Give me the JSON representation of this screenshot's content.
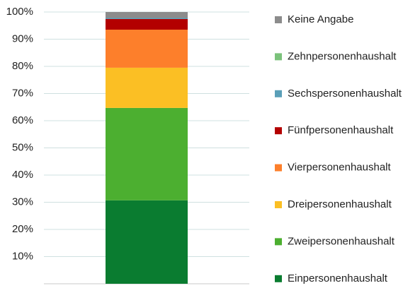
{
  "chart_data": {
    "type": "stacked_bar",
    "categories": [
      null
    ],
    "series": [
      {
        "name": "Einpersonenhaushalt",
        "color": "#0a7c30",
        "values": [
          30.7
        ]
      },
      {
        "name": "Zweipersonenhaushalt",
        "color": "#4caf30",
        "values": [
          34.0
        ]
      },
      {
        "name": "Dreipersonenhaushalt",
        "color": "#fbbf24",
        "values": [
          14.8
        ]
      },
      {
        "name": "Vierpersonenhaushalt",
        "color": "#fd7f2b",
        "values": [
          14.0
        ]
      },
      {
        "name": "Fünfpersonenhaushalt",
        "color": "#b30000",
        "values": [
          3.9
        ]
      },
      {
        "name": "Sechspersonenhaushalt",
        "color": "#5a9fb8",
        "values": [
          0.4
        ]
      },
      {
        "name": "Zehnpersonenhaushalt",
        "color": "#7bc27b",
        "values": [
          0
        ]
      },
      {
        "name": "Keine Angabe",
        "color": "#8c8c8c",
        "values": [
          2.2
        ]
      }
    ],
    "ylim": [
      0,
      100
    ],
    "yticks": [
      {
        "value": 10,
        "label": "10%"
      },
      {
        "value": 20,
        "label": "20%"
      },
      {
        "value": 30,
        "label": "30%"
      },
      {
        "value": 40,
        "label": "40%"
      },
      {
        "value": 50,
        "label": "50%"
      },
      {
        "value": 60,
        "label": "60%"
      },
      {
        "value": 70,
        "label": "70%"
      },
      {
        "value": 80,
        "label": "80%"
      },
      {
        "value": 90,
        "label": "90%"
      },
      {
        "value": 100,
        "label": "100%"
      }
    ],
    "grid": true,
    "legend": "right"
  }
}
